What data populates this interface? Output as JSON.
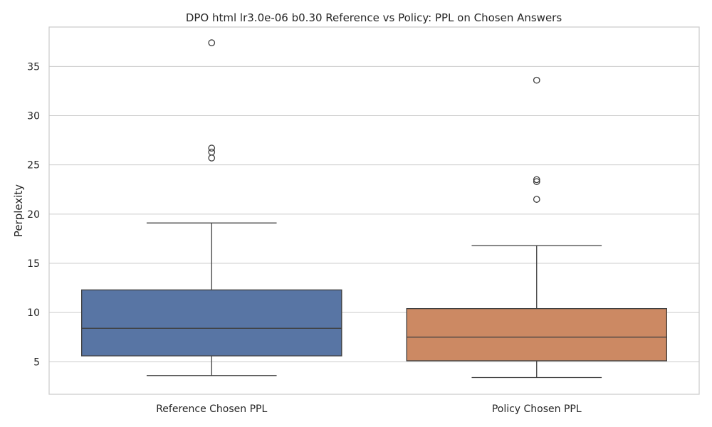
{
  "chart_data": {
    "type": "box",
    "title": "DPO html lr3.0e-06 b0.30 Reference vs Policy: PPL on Chosen Answers",
    "xlabel": "",
    "ylabel": "Perplexity",
    "ylim": [
      1.7,
      39.0
    ],
    "yticks": [
      5,
      10,
      15,
      20,
      25,
      30,
      35
    ],
    "grid": true,
    "categories": [
      "Reference Chosen PPL",
      "Policy Chosen PPL"
    ],
    "boxes": [
      {
        "category": "Reference Chosen PPL",
        "color": "#5875a4",
        "whisker_low": 3.6,
        "q1": 5.6,
        "median": 8.4,
        "q3": 12.3,
        "whisker_high": 19.1,
        "outliers": [
          25.7,
          26.3,
          26.7,
          37.4
        ]
      },
      {
        "category": "Policy Chosen PPL",
        "color": "#cc8963",
        "whisker_low": 3.4,
        "q1": 5.1,
        "median": 7.5,
        "q3": 10.4,
        "whisker_high": 16.8,
        "outliers": [
          21.5,
          23.3,
          23.5,
          33.6
        ]
      }
    ]
  }
}
